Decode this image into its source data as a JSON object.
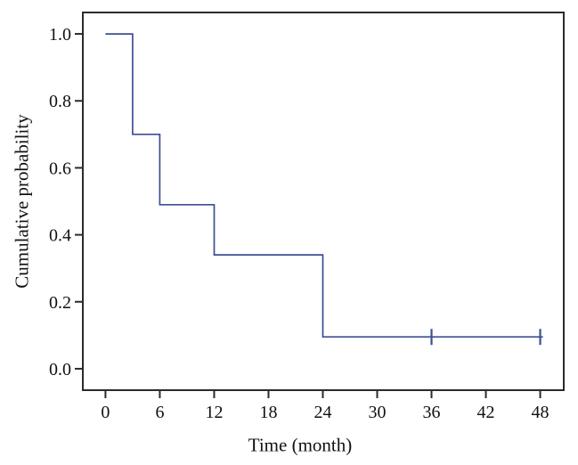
{
  "chart_data": {
    "type": "line",
    "subtype": "kaplan-meier-step",
    "title": "",
    "xlabel": "Time (month)",
    "ylabel": "Cumulative probability",
    "x_ticks": [
      0,
      6,
      12,
      18,
      24,
      30,
      36,
      42,
      48
    ],
    "y_ticks": [
      0.0,
      0.2,
      0.4,
      0.6,
      0.8,
      1.0
    ],
    "y_tick_labels": [
      "0.0",
      "0.2",
      "0.4",
      "0.6",
      "0.8",
      "1.0"
    ],
    "x_tick_labels": [
      "0",
      "6",
      "12",
      "18",
      "24",
      "30",
      "36",
      "42",
      "48"
    ],
    "xlim": [
      -2.5,
      50.6
    ],
    "ylim": [
      -0.064,
      1.064
    ],
    "grid": false,
    "legend": "none",
    "frame_color": "#2b2b2b",
    "text_color": "#111111",
    "series": [
      {
        "name": "cumulative probability",
        "color": "#3d4f93",
        "step_points": [
          {
            "t": 0,
            "p": 1.0
          },
          {
            "t": 3,
            "p": 0.7
          },
          {
            "t": 6,
            "p": 0.49
          },
          {
            "t": 12,
            "p": 0.34
          },
          {
            "t": 24,
            "p": 0.095
          }
        ],
        "line_end_t": 48.3,
        "censor_marks": [
          {
            "t": 36,
            "p": 0.095
          },
          {
            "t": 48,
            "p": 0.095
          }
        ]
      }
    ]
  }
}
